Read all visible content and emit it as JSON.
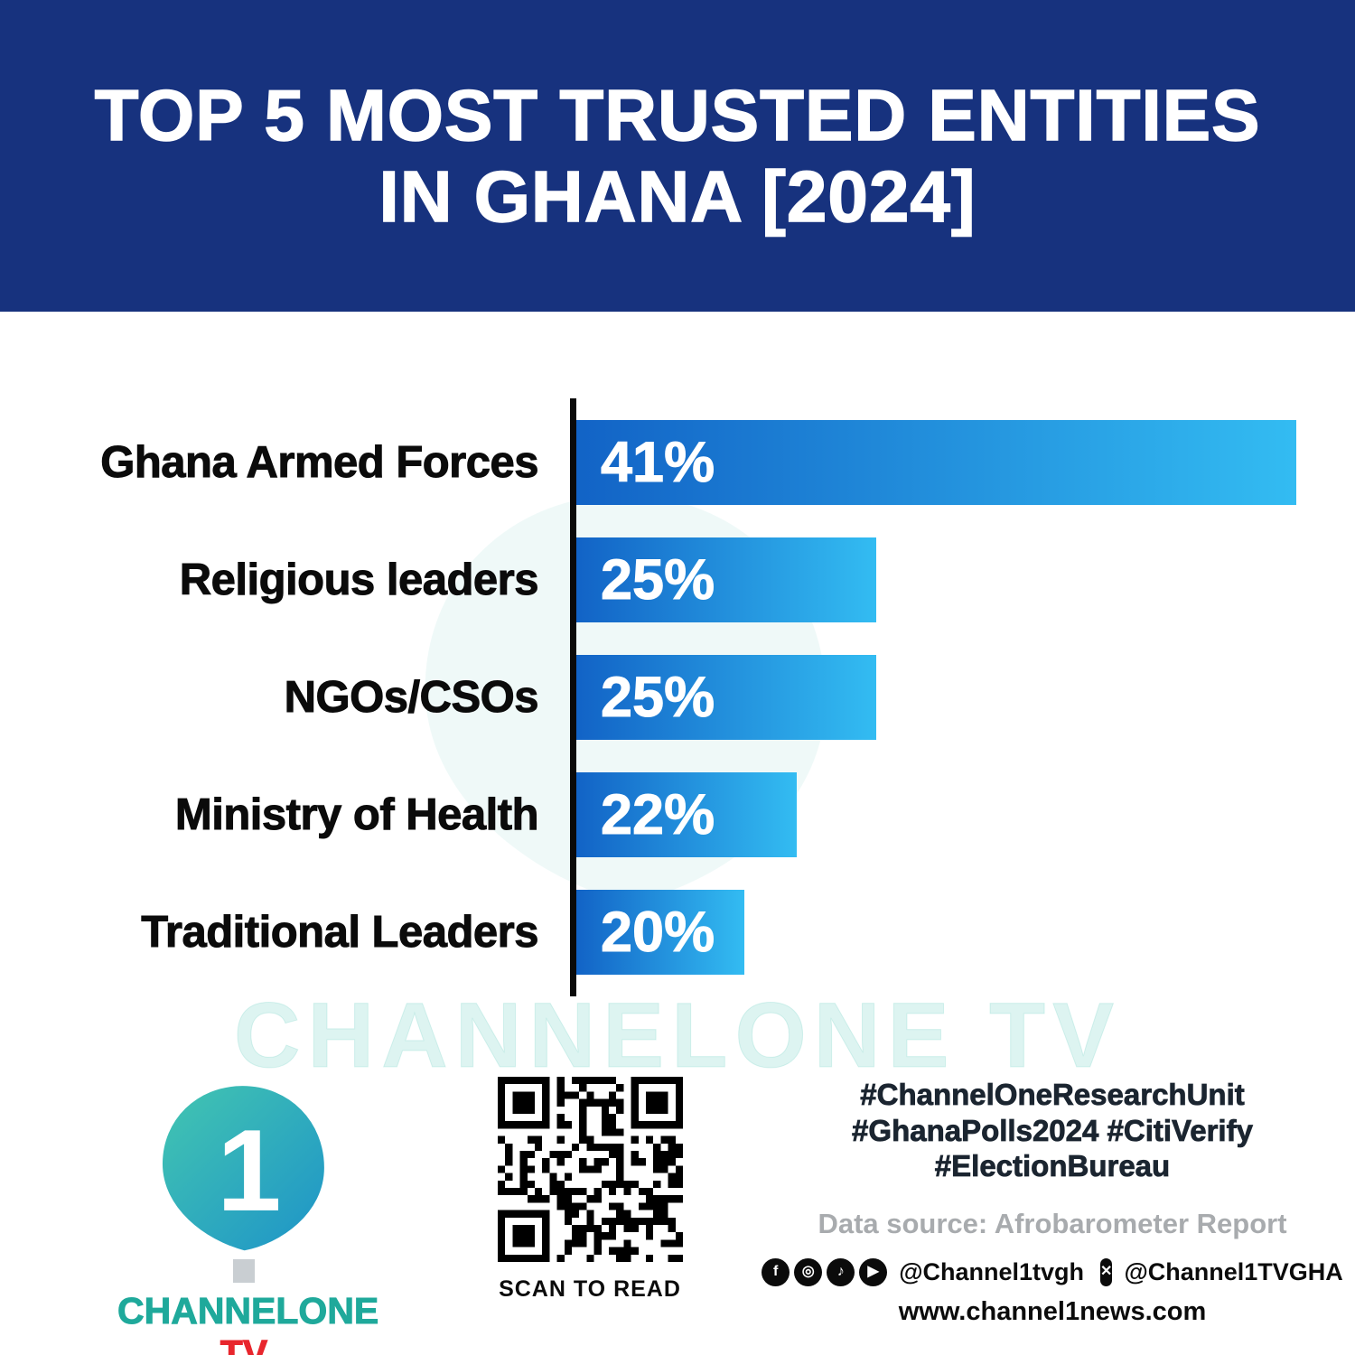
{
  "header": {
    "title_line1": "TOP 5 MOST TRUSTED ENTITIES",
    "title_line2": "IN GHANA [2024]"
  },
  "chart_data": {
    "type": "bar",
    "orientation": "horizontal",
    "title": "Top 5 Most Trusted Entities in Ghana [2024]",
    "categories": [
      "Ghana Armed Forces",
      "Religious leaders",
      "NGOs/CSOs",
      "Ministry of Health",
      "Traditional Leaders"
    ],
    "values": [
      41,
      25,
      25,
      22,
      20
    ],
    "value_labels": [
      "41%",
      "25%",
      "25%",
      "22%",
      "20%"
    ],
    "bar_widths_pct": [
      100,
      41.6,
      41.6,
      30.6,
      23.4
    ],
    "xlabel": "",
    "ylabel": "",
    "grid": false,
    "legend": false
  },
  "watermark": {
    "text": "CHANNELONE TV"
  },
  "footer": {
    "brand": {
      "channel": "CHANNELONE",
      "tv": " TV",
      "logo_numeral": "1"
    },
    "qr_caption": "SCAN TO READ",
    "hashtags": [
      "#ChannelOneResearchUnit",
      "#GhanaPolls2024 #CitiVerify",
      "#ElectionBureau"
    ],
    "data_source": "Data source: Afrobarometer Report",
    "social": {
      "handle1": "@Channel1tvgh",
      "handle2": "@Channel1TVGHA"
    },
    "website": "www.channel1news.com"
  },
  "icons": {
    "facebook": "f",
    "instagram": "◎",
    "tiktok": "♪",
    "youtube": "▶",
    "x": "✕"
  },
  "colors": {
    "header_bg": "#17327E",
    "bar_gradient_start": "#1263C6",
    "bar_gradient_end": "#33BCF2",
    "axis": "#0A0A0A",
    "brand_teal": "#1FA99B",
    "brand_red": "#E8262D",
    "watermark": "rgba(46,184,170,0.16)"
  }
}
